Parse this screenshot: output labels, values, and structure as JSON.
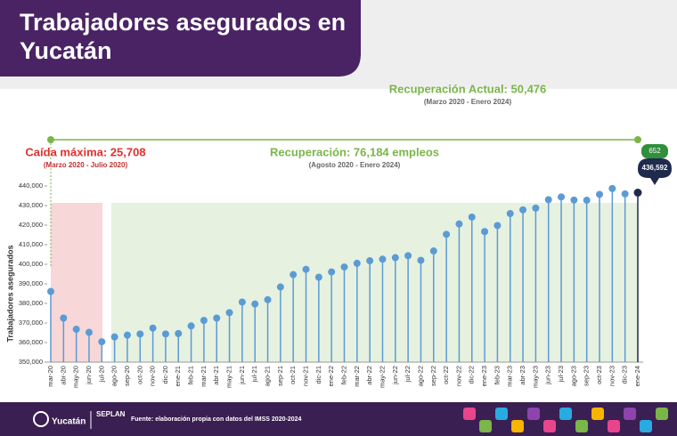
{
  "chart_data": {
    "type": "lollipop",
    "title": "Trabajadores asegurados en Yucatán",
    "y_label": "Trabajadores asegurados",
    "annotations": {
      "current": "Recuperación Actual: 50,476",
      "current_period": "(Marzo 2020 - Enero 2024)",
      "drop": "Caída máxima: 25,708",
      "drop_period": "(Marzo 2020 - Julio 2020)",
      "recovery": "Recuperación: 76,184 empleos",
      "recovery_period": "(Agosto 2020 - Enero 2024)",
      "last_change": "652",
      "last_value": "436,592"
    },
    "source": "Fuente: elaboración propia con datos del IMSS 2020-2024",
    "logos": [
      "Yucatán",
      "SEPLAN"
    ],
    "categories": [
      "mar-20",
      "abr-20",
      "may-20",
      "jun-20",
      "jul-20",
      "ago-20",
      "sep-20",
      "oct-20",
      "nov-20",
      "dic-20",
      "ene-21",
      "feb-21",
      "mar-21",
      "abr-21",
      "may-21",
      "jun-21",
      "jul-21",
      "ago-21",
      "sep-21",
      "oct-21",
      "nov-21",
      "dic-21",
      "ene-22",
      "feb-22",
      "mar-22",
      "abr-22",
      "may-22",
      "jun-22",
      "jul-22",
      "ago-22",
      "sep-22",
      "oct-22",
      "nov-22",
      "dic-22",
      "ene-23",
      "feb-23",
      "mar-23",
      "abr-23",
      "may-23",
      "jun-23",
      "jul-23",
      "ago-23",
      "sep-23",
      "oct-23",
      "nov-23",
      "dic-23",
      "ene-24"
    ],
    "values": [
      386116,
      372500,
      366800,
      365200,
      360408,
      362900,
      363800,
      364400,
      367400,
      364400,
      364600,
      368500,
      371300,
      372500,
      375300,
      380700,
      379700,
      381900,
      388400,
      394700,
      397400,
      393400,
      396100,
      398600,
      400500,
      401800,
      402600,
      403400,
      404400,
      402000,
      406800,
      415300,
      420600,
      424100,
      416700,
      419800,
      425900,
      427800,
      428700,
      433000,
      434400,
      432800,
      432700,
      435700,
      438700,
      435940,
      436592
    ],
    "color": "#5b9bd5",
    "ylim": [
      350000,
      440000
    ],
    "yticks": [
      {
        "value": 350000,
        "label": "350,000"
      },
      {
        "value": 360000,
        "label": "360,000"
      },
      {
        "value": 370000,
        "label": "370,000"
      },
      {
        "value": 380000,
        "label": "380,000"
      },
      {
        "value": 390000,
        "label": "390,000"
      },
      {
        "value": 400000,
        "label": "400,000"
      },
      {
        "value": 410000,
        "label": "410,000"
      },
      {
        "value": 420000,
        "label": "420,000"
      },
      {
        "value": 430000,
        "label": "430,000"
      },
      {
        "value": 440000,
        "label": "440,000"
      }
    ]
  }
}
